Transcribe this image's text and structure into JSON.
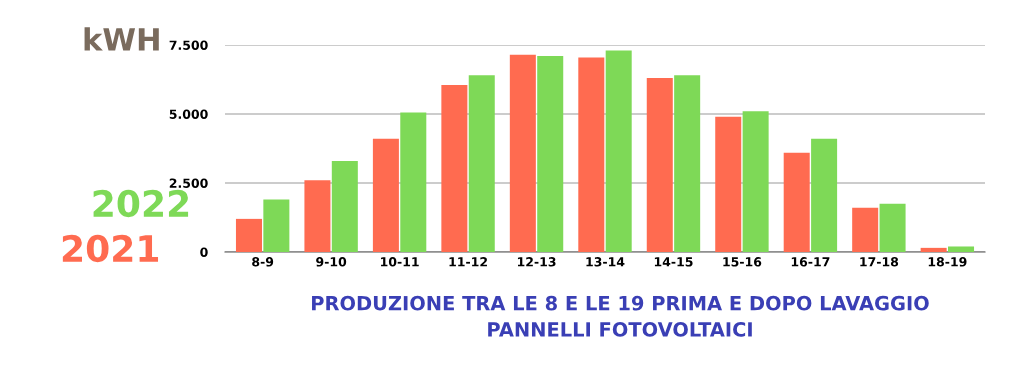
{
  "chart_data": {
    "type": "bar",
    "title": "PRODUZIONE TRA LE 8 E LE 19 PRIMA E DOPO LAVAGGIO\nPANNELLI FOTOVOLTAICI",
    "ylabel": "kWH",
    "categories": [
      "8-9",
      "9-10",
      "10-11",
      "11-12",
      "12-13",
      "13-14",
      "14-15",
      "15-16",
      "16-17",
      "17-18",
      "18-19"
    ],
    "series": [
      {
        "name": "2021",
        "color": "#ff6b50",
        "values": [
          1200,
          2600,
          4100,
          6050,
          7150,
          7050,
          6300,
          4900,
          3600,
          1600,
          150
        ]
      },
      {
        "name": "2022",
        "color": "#7ed957",
        "values": [
          1900,
          3300,
          5050,
          6400,
          7100,
          7300,
          6400,
          5100,
          4100,
          1750,
          200
        ]
      }
    ],
    "ylim": [
      0,
      7500
    ],
    "yticks": [
      {
        "value": 0,
        "label": "0"
      },
      {
        "value": 2500,
        "label": "2.500"
      },
      {
        "value": 5000,
        "label": "5.000"
      },
      {
        "value": 7500,
        "label": "7.500"
      }
    ],
    "grid": "y",
    "legend": "left"
  }
}
